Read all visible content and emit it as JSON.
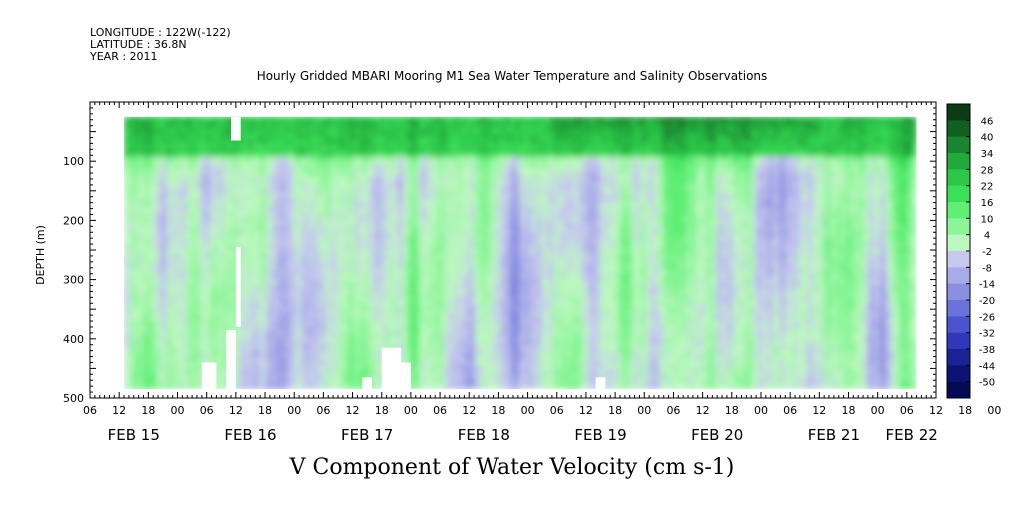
{
  "header": {
    "longitude": "LONGITUDE : 122W(-122)",
    "latitude": "LATITUDE : 36.8N",
    "year": "YEAR : 2011"
  },
  "chart_data": {
    "type": "heatmap",
    "title": "Hourly Gridded MBARI Mooring M1 Sea Water Temperature and Salinity Observations",
    "variable_label": "V Component of Water Velocity (cm s-1)",
    "ylabel": "DEPTH (m)",
    "y_range": [
      0,
      500
    ],
    "y_reversed": true,
    "y_ticks": [
      100,
      200,
      300,
      400,
      500
    ],
    "y_tick_labels": [
      "100",
      "200",
      "300",
      "400",
      "500"
    ],
    "x_range_hours": [
      0,
      174
    ],
    "x_tick_labels": [
      "06",
      "12",
      "18",
      "00",
      "06",
      "12",
      "18",
      "00",
      "06",
      "12",
      "18",
      "00",
      "06",
      "12",
      "18",
      "00",
      "06",
      "12",
      "18",
      "00",
      "06",
      "12",
      "18",
      "00",
      "06",
      "12",
      "18",
      "00",
      "06",
      "12",
      "18",
      "00",
      "06"
    ],
    "date_labels": [
      "FEB 15",
      "FEB 16",
      "FEB 17",
      "FEB 18",
      "FEB 19",
      "FEB 20",
      "FEB 21",
      "FEB 22"
    ],
    "date_label_hours": [
      9,
      33,
      57,
      81,
      105,
      129,
      153,
      169
    ],
    "data_hours": [
      7,
      170
    ],
    "data_depth": [
      25,
      485
    ],
    "colorbar": {
      "labels": [
        "46",
        "40",
        "34",
        "28",
        "22",
        "16",
        "10",
        "4",
        "-2",
        "-8",
        "-14",
        "-20",
        "-26",
        "-32",
        "-38",
        "-44",
        "-50"
      ],
      "colors": [
        "#0c3b16",
        "#125f22",
        "#1a852f",
        "#22a93c",
        "#2cc749",
        "#3bdf59",
        "#5eef74",
        "#8cf59a",
        "#bdf8c0",
        "#c6c8ee",
        "#a7abe8",
        "#8a8fe2",
        "#6a72dc",
        "#4a53d0",
        "#2f38b8",
        "#1a2396",
        "#0b1373",
        "#050a55"
      ]
    },
    "surface_layer": {
      "depth": [
        25,
        100
      ],
      "values": "positive 10-46"
    },
    "gaps": [
      {
        "hour": [
          23,
          26
        ],
        "depth": [
          440,
          485
        ]
      },
      {
        "hour": [
          28,
          30
        ],
        "depth": [
          385,
          485
        ]
      },
      {
        "hour": [
          29,
          31
        ],
        "depth": [
          25,
          65
        ]
      },
      {
        "hour": [
          30,
          31
        ],
        "depth": [
          245,
          380
        ]
      },
      {
        "hour": [
          56,
          58
        ],
        "depth": [
          465,
          485
        ]
      },
      {
        "hour": [
          60,
          64
        ],
        "depth": [
          415,
          485
        ]
      },
      {
        "hour": [
          64,
          66
        ],
        "depth": [
          440,
          485
        ]
      },
      {
        "hour": [
          104,
          106
        ],
        "depth": [
          465,
          485
        ]
      }
    ]
  }
}
